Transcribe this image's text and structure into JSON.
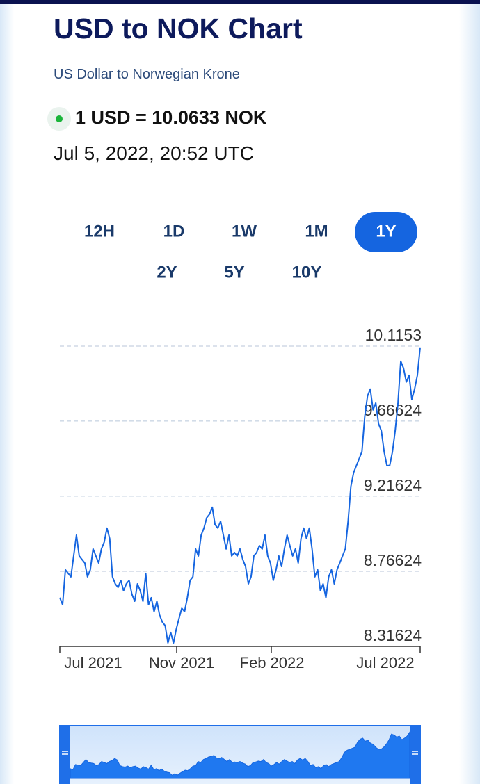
{
  "header": {
    "title": "USD to NOK Chart",
    "subtitle": "US Dollar to Norwegian Krone"
  },
  "rate": {
    "text": "1 USD = 10.0633 NOK",
    "timestamp": "Jul 5, 2022, 20:52 UTC"
  },
  "range_buttons": {
    "labels": [
      "12H",
      "1D",
      "1W",
      "1M",
      "1Y",
      "2Y",
      "5Y",
      "10Y"
    ],
    "selected": 4
  },
  "chart_data": {
    "type": "line",
    "series": [
      {
        "color": "#1565e0",
        "values": [
          8.608,
          8.566,
          8.775,
          8.754,
          8.733,
          8.858,
          8.983,
          8.858,
          8.837,
          8.816,
          8.733,
          8.775,
          8.9,
          8.858,
          8.816,
          8.9,
          8.941,
          9.025,
          8.962,
          8.733,
          8.691,
          8.67,
          8.712,
          8.65,
          8.691,
          8.712,
          8.629,
          8.587,
          8.691,
          8.65,
          8.587,
          8.754,
          8.566,
          8.608,
          8.525,
          8.587,
          8.504,
          8.462,
          8.441,
          8.337,
          8.4,
          8.337,
          8.42,
          8.483,
          8.545,
          8.525,
          8.608,
          8.712,
          8.733,
          8.9,
          8.858,
          8.983,
          9.025,
          9.087,
          9.108,
          9.15,
          9.046,
          9.025,
          9.066,
          8.983,
          8.9,
          8.983,
          8.858,
          8.879,
          8.858,
          8.9,
          8.837,
          8.795,
          8.691,
          8.733,
          8.858,
          8.879,
          8.92,
          8.9,
          8.983,
          8.858,
          8.816,
          8.712,
          8.775,
          8.858,
          8.795,
          8.9,
          8.983,
          8.92,
          8.858,
          8.9,
          8.816,
          8.962,
          9.025,
          8.962,
          9.025,
          8.9,
          8.733,
          8.775,
          8.65,
          8.691,
          8.608,
          8.733,
          8.775,
          8.691,
          8.775,
          8.816,
          8.858,
          8.9,
          9.066,
          9.275,
          9.358,
          9.4,
          9.441,
          9.483,
          9.691,
          9.816,
          9.858,
          9.733,
          9.775,
          9.65,
          9.608,
          9.483,
          9.4,
          9.4,
          9.483,
          9.608,
          9.775,
          10.025,
          9.983,
          9.9,
          9.941,
          9.795,
          9.858,
          9.941,
          10.108
        ]
      }
    ],
    "ylim": [
      8.31624,
      10.1153
    ],
    "yticks": [
      8.31624,
      8.76624,
      9.21624,
      9.66624,
      10.1153
    ],
    "x_axis_labels": [
      "Jul 2021",
      "Nov 2021",
      "Feb 2022",
      "Jul 2022"
    ],
    "grid": true
  }
}
